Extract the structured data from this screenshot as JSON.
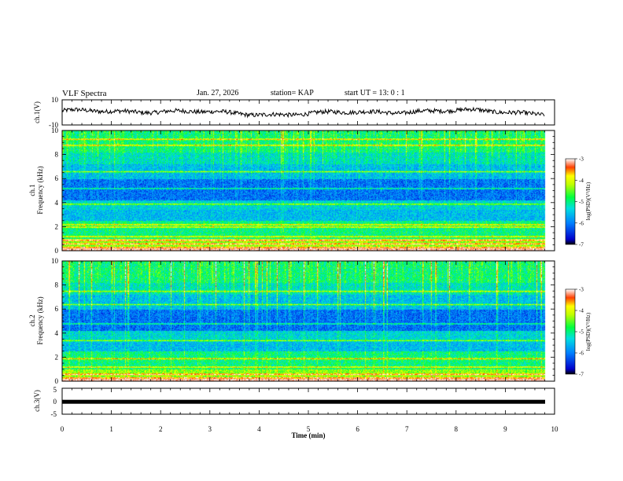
{
  "header": {
    "title": "VLF Spectra",
    "date": "Jan. 27, 2026",
    "station": "station= KAP",
    "start_ut": "start  UT =   13: 0  : 1"
  },
  "chart_data": [
    {
      "type": "line",
      "name": "ch1-waveform",
      "ylabel": "ch.1(V)",
      "ylim": [
        -10,
        10
      ],
      "yticks": [
        "10",
        "-10"
      ],
      "xlim": [
        0,
        10
      ]
    },
    {
      "type": "heatmap",
      "name": "ch1-spectrogram",
      "ylabel_top": "ch.1",
      "ylabel": "Frequency  (kHz)",
      "ylim": [
        0,
        10
      ],
      "yticks": [
        "0",
        "2",
        "4",
        "6",
        "8",
        "10"
      ],
      "xlim": [
        0,
        10
      ],
      "colorbar": {
        "label": "log(PSD)(V²/Hz)",
        "ticks": [
          "-3",
          "-4",
          "-5",
          "-6",
          "-7"
        ],
        "range": [
          -7,
          -3
        ]
      },
      "narrowband_lines_khz": [
        0.3,
        0.6,
        0.9,
        1.2,
        2.0,
        2.2,
        3.9,
        5.2,
        6.6,
        8.8,
        9.3
      ]
    },
    {
      "type": "heatmap",
      "name": "ch2-spectrogram",
      "ylabel_top": "ch.2",
      "ylabel": "Frequency  (kHz)",
      "ylim": [
        0,
        10
      ],
      "yticks": [
        "0",
        "2",
        "4",
        "6",
        "8",
        "10"
      ],
      "xlim": [
        0,
        10
      ],
      "colorbar": {
        "label": "log(PSD)(V²/Hz)",
        "ticks": [
          "-3",
          "-4",
          "-5",
          "-6",
          "-7"
        ],
        "range": [
          -7,
          -3
        ]
      },
      "narrowband_lines_khz": [
        0.3,
        0.6,
        1.2,
        1.9,
        3.4,
        4.8,
        6.4,
        7.5
      ]
    },
    {
      "type": "line",
      "name": "ch3-signal",
      "ylabel": "ch.3(V)",
      "ylim": [
        -5,
        5
      ],
      "yticks": [
        "5",
        "0",
        "-5"
      ],
      "xlim": [
        0,
        10
      ],
      "xticks": [
        "0",
        "1",
        "2",
        "3",
        "4",
        "5",
        "6",
        "7",
        "8",
        "9",
        "10"
      ],
      "xlabel": "Time  (min)",
      "level": -0.2
    }
  ]
}
